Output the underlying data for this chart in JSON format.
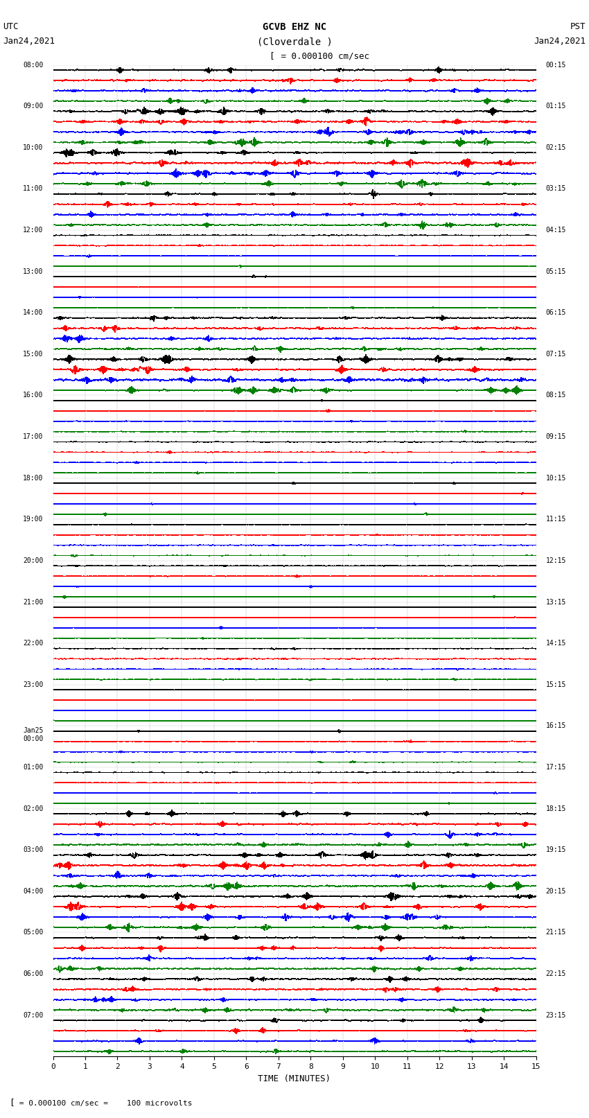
{
  "title_line1": "GCVB EHZ NC",
  "title_line2": "(Cloverdale )",
  "scale_text": "= 0.000100 cm/sec",
  "footer_text": "= 0.000100 cm/sec =    100 microvolts",
  "utc_label": "UTC",
  "utc_date": "Jan24,2021",
  "pst_label": "PST",
  "pst_date": "Jan24,2021",
  "xlabel": "TIME (MINUTES)",
  "left_times_utc": [
    "08:00",
    "09:00",
    "10:00",
    "11:00",
    "12:00",
    "13:00",
    "14:00",
    "15:00",
    "16:00",
    "17:00",
    "18:00",
    "19:00",
    "20:00",
    "21:00",
    "22:00",
    "23:00",
    "Jan25\n00:00",
    "01:00",
    "02:00",
    "03:00",
    "04:00",
    "05:00",
    "06:00",
    "07:00"
  ],
  "right_times_pst": [
    "00:15",
    "01:15",
    "02:15",
    "03:15",
    "04:15",
    "05:15",
    "06:15",
    "07:15",
    "08:15",
    "09:15",
    "10:15",
    "11:15",
    "12:15",
    "13:15",
    "14:15",
    "15:15",
    "16:15",
    "17:15",
    "18:15",
    "19:15",
    "20:15",
    "21:15",
    "22:15",
    "23:15"
  ],
  "n_rows": 96,
  "n_groups": 24,
  "rows_per_group": 4,
  "minutes_per_row": 15,
  "colors_cycle": [
    "black",
    "red",
    "blue",
    "green"
  ],
  "bg_color": "white",
  "line_width": 0.5,
  "fig_width": 8.5,
  "fig_height": 16.13,
  "dpi": 100,
  "x_ticks": [
    0,
    1,
    2,
    3,
    4,
    5,
    6,
    7,
    8,
    9,
    10,
    11,
    12,
    13,
    14,
    15
  ],
  "active_groups_high": [
    0,
    1,
    2,
    3,
    6,
    7,
    18,
    19,
    20,
    21,
    22,
    23
  ],
  "very_active_groups": [
    1,
    2,
    7,
    19,
    20
  ]
}
